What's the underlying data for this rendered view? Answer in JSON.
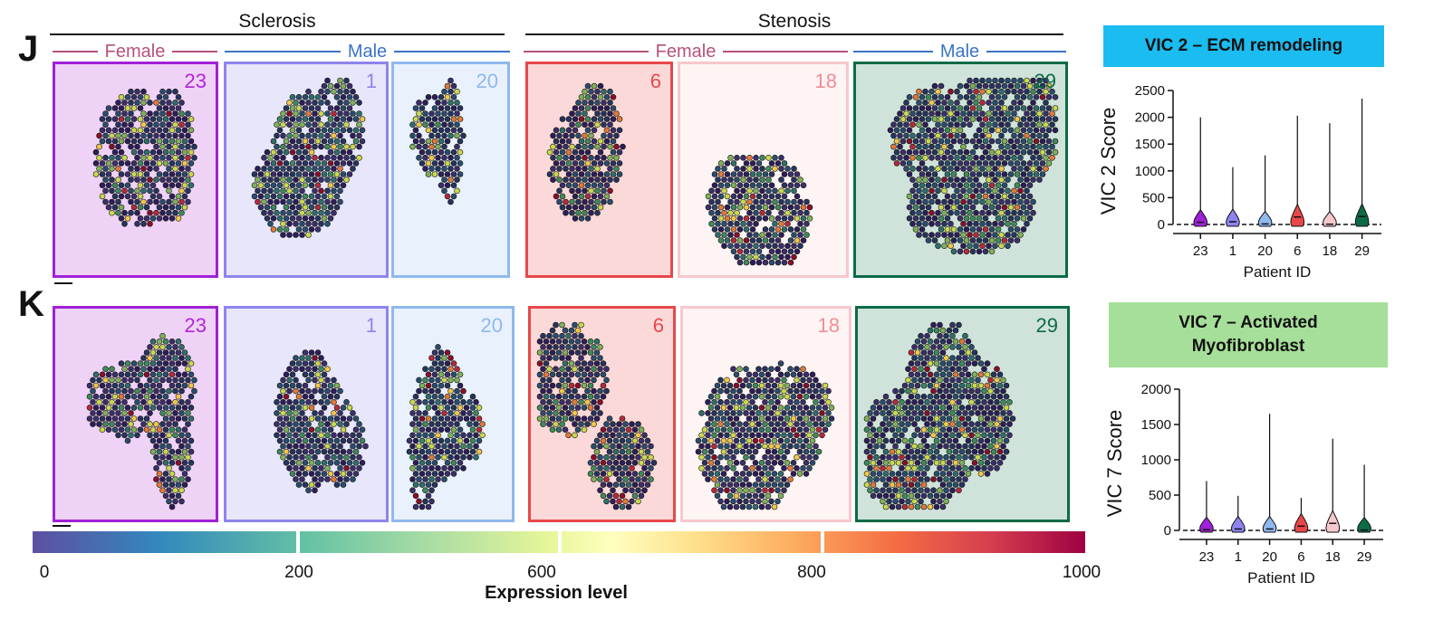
{
  "panels": {
    "j": "J",
    "k": "K"
  },
  "groups": {
    "sclerosis": "Sclerosis",
    "stenosis": "Stenosis"
  },
  "sex_labels": {
    "sclerosis_female": "Female",
    "sclerosis_male": "Male",
    "stenosis_female": "Female",
    "stenosis_male": "Male"
  },
  "sex_colors": {
    "female": "#b5527a",
    "male": "#3a74c4"
  },
  "patients": [
    {
      "id": "23",
      "border": "#a020d8",
      "fill": "#efd3f7",
      "text": "#b323d9"
    },
    {
      "id": "1",
      "border": "#8f84ee",
      "fill": "#e7e6fb",
      "text": "#8f84ee"
    },
    {
      "id": "20",
      "border": "#8fb8ef",
      "fill": "#e9f1fc",
      "text": "#8fb8ef"
    },
    {
      "id": "6",
      "border": "#e8474a",
      "fill": "#fbd9d8",
      "text": "#e8474a"
    },
    {
      "id": "18",
      "border": "#f6c8cc",
      "fill": "#fef4f4",
      "text": "#f08c96"
    },
    {
      "id": "29",
      "border": "#0c6b46",
      "fill": "#d0e3da",
      "text": "#0c6b46"
    }
  ],
  "vic2": {
    "title": "VIC 2 – ECM remodeling",
    "bg": "#1bbcf0",
    "ylabel": "VIC 2 Score",
    "xlabel": "Patient ID"
  },
  "vic7": {
    "title_line1": "VIC 7 – Activated",
    "title_line2": "Myofibroblast",
    "bg": "#a6df99",
    "ylabel": "VIC 7 Score",
    "xlabel": "Patient ID"
  },
  "chart_data": [
    {
      "type": "violin",
      "ylabel": "VIC 2 Score",
      "xlabel": "Patient ID",
      "categories": [
        "23",
        "1",
        "20",
        "6",
        "18",
        "29"
      ],
      "ylim": [
        0,
        2500
      ],
      "yticks": [
        0,
        500,
        1000,
        1500,
        2000,
        2500
      ],
      "max": [
        2000,
        1070,
        1290,
        2030,
        1890,
        2350
      ],
      "median": [
        40,
        50,
        10,
        140,
        5,
        150
      ],
      "colors": [
        "#a020d8",
        "#8f84ee",
        "#8fb8ef",
        "#e8474a",
        "#f6c8cc",
        "#0c6b46"
      ],
      "baseline": 0
    },
    {
      "type": "violin",
      "ylabel": "VIC 7 Score",
      "xlabel": "Patient ID",
      "categories": [
        "23",
        "1",
        "20",
        "6",
        "18",
        "29"
      ],
      "ylim": [
        0,
        2000
      ],
      "yticks": [
        0,
        500,
        1000,
        1500,
        2000
      ],
      "max": [
        700,
        490,
        1650,
        460,
        1300,
        930
      ],
      "median": [
        10,
        20,
        20,
        60,
        100,
        5
      ],
      "colors": [
        "#a020d8",
        "#8f84ee",
        "#8fb8ef",
        "#e8474a",
        "#f6c8cc",
        "#0c6b46"
      ],
      "baseline": 0
    }
  ],
  "colorbar": {
    "title": "Expression level",
    "ticks": [
      "0",
      "200",
      "600",
      "800",
      "1000"
    ]
  }
}
